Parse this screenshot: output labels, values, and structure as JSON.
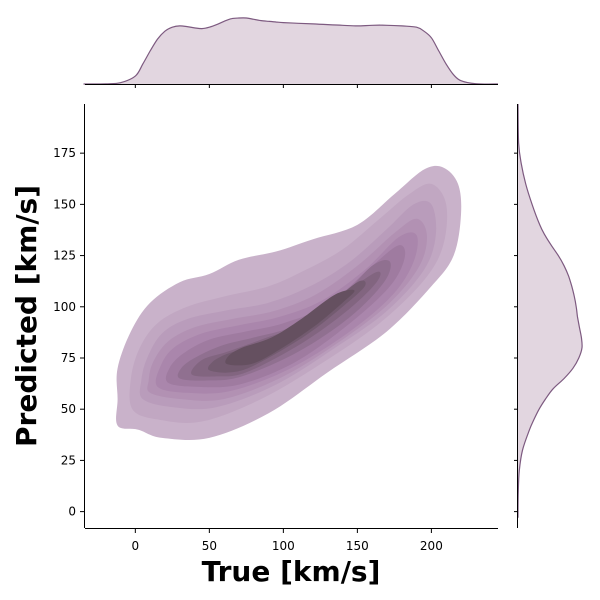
{
  "chart_data": {
    "type": "kde2d-jointplot",
    "xlabel": "True [km/s]",
    "ylabel": "Predicted [km/s]",
    "xlim": [
      -34,
      245
    ],
    "ylim": [
      -8,
      199
    ],
    "xticks": [
      0,
      50,
      100,
      150,
      200
    ],
    "yticks": [
      0,
      25,
      50,
      75,
      100,
      125,
      150,
      175
    ],
    "grid": false,
    "legend": "none",
    "colors": {
      "fill_light": "#c9b2ca",
      "fill_mid": "#a680a8",
      "fill_dark": "#655060",
      "marginal_fill": "#e2d6e0",
      "marginal_line": "#7d5a80",
      "axis": "#000000"
    },
    "joint_density_levels": [
      {
        "level": 1,
        "outline": [
          [
            -12,
            42
          ],
          [
            2,
            40
          ],
          [
            18,
            36
          ],
          [
            50,
            36
          ],
          [
            90,
            48
          ],
          [
            130,
            68
          ],
          [
            170,
            88
          ],
          [
            200,
            110
          ],
          [
            215,
            125
          ],
          [
            220,
            145
          ],
          [
            218,
            160
          ],
          [
            208,
            168
          ],
          [
            195,
            167
          ],
          [
            175,
            155
          ],
          [
            150,
            140
          ],
          [
            120,
            133
          ],
          [
            95,
            127
          ],
          [
            70,
            123
          ],
          [
            50,
            116
          ],
          [
            30,
            112
          ],
          [
            10,
            102
          ],
          [
            -3,
            88
          ],
          [
            -12,
            70
          ],
          [
            -12,
            55
          ]
        ]
      },
      {
        "level": 2,
        "outline": [
          [
            -2,
            50
          ],
          [
            15,
            45
          ],
          [
            45,
            44
          ],
          [
            85,
            55
          ],
          [
            125,
            72
          ],
          [
            165,
            92
          ],
          [
            195,
            113
          ],
          [
            208,
            130
          ],
          [
            210,
            150
          ],
          [
            200,
            160
          ],
          [
            185,
            155
          ],
          [
            165,
            143
          ],
          [
            140,
            128
          ],
          [
            115,
            118
          ],
          [
            90,
            110
          ],
          [
            60,
            105
          ],
          [
            35,
            100
          ],
          [
            15,
            92
          ],
          [
            3,
            80
          ],
          [
            -3,
            65
          ]
        ]
      },
      {
        "level": 3,
        "outline": [
          [
            5,
            55
          ],
          [
            25,
            51
          ],
          [
            55,
            51
          ],
          [
            95,
            62
          ],
          [
            135,
            80
          ],
          [
            170,
            98
          ],
          [
            195,
            118
          ],
          [
            203,
            135
          ],
          [
            200,
            150
          ],
          [
            188,
            150
          ],
          [
            170,
            138
          ],
          [
            145,
            122
          ],
          [
            118,
            110
          ],
          [
            90,
            102
          ],
          [
            60,
            98
          ],
          [
            35,
            94
          ],
          [
            18,
            87
          ],
          [
            8,
            75
          ],
          [
            4,
            64
          ]
        ]
      },
      {
        "level": 4,
        "outline": [
          [
            10,
            58
          ],
          [
            30,
            55
          ],
          [
            60,
            55
          ],
          [
            100,
            66
          ],
          [
            140,
            84
          ],
          [
            172,
            102
          ],
          [
            192,
            120
          ],
          [
            197,
            135
          ],
          [
            190,
            143
          ],
          [
            175,
            136
          ],
          [
            150,
            120
          ],
          [
            122,
            106
          ],
          [
            94,
            98
          ],
          [
            65,
            94
          ],
          [
            40,
            90
          ],
          [
            22,
            83
          ],
          [
            12,
            73
          ],
          [
            9,
            64
          ]
        ]
      },
      {
        "level": 5,
        "outline": [
          [
            15,
            61
          ],
          [
            35,
            58
          ],
          [
            65,
            59
          ],
          [
            105,
            70
          ],
          [
            145,
            88
          ],
          [
            174,
            106
          ],
          [
            188,
            122
          ],
          [
            190,
            135
          ],
          [
            178,
            134
          ],
          [
            155,
            118
          ],
          [
            126,
            103
          ],
          [
            97,
            95
          ],
          [
            70,
            91
          ],
          [
            45,
            87
          ],
          [
            26,
            80
          ],
          [
            17,
            71
          ]
        ]
      },
      {
        "level": 6,
        "outline": [
          [
            22,
            63
          ],
          [
            40,
            61
          ],
          [
            70,
            62
          ],
          [
            108,
            73
          ],
          [
            145,
            92
          ],
          [
            172,
            110
          ],
          [
            182,
            124
          ],
          [
            178,
            130
          ],
          [
            160,
            120
          ],
          [
            130,
            101
          ],
          [
            100,
            92
          ],
          [
            75,
            88
          ],
          [
            50,
            84
          ],
          [
            32,
            77
          ],
          [
            23,
            70
          ]
        ]
      },
      {
        "level": 7,
        "outline": [
          [
            30,
            65
          ],
          [
            48,
            64
          ],
          [
            72,
            66
          ],
          [
            110,
            78
          ],
          [
            145,
            95
          ],
          [
            168,
            112
          ],
          [
            172,
            122
          ],
          [
            160,
            120
          ],
          [
            135,
            102
          ],
          [
            105,
            90
          ],
          [
            80,
            85
          ],
          [
            58,
            81
          ],
          [
            40,
            75
          ],
          [
            31,
            70
          ]
        ]
      },
      {
        "level": 8,
        "outline": [
          [
            38,
            67
          ],
          [
            55,
            66
          ],
          [
            75,
            68
          ],
          [
            112,
            82
          ],
          [
            143,
            98
          ],
          [
            163,
            112
          ],
          [
            163,
            117
          ],
          [
            140,
            106
          ],
          [
            110,
            91
          ],
          [
            85,
            84
          ],
          [
            62,
            78
          ],
          [
            45,
            74
          ]
        ]
      },
      {
        "level": 9,
        "outline": [
          [
            50,
            69
          ],
          [
            65,
            68
          ],
          [
            82,
            72
          ],
          [
            115,
            86
          ],
          [
            140,
            100
          ],
          [
            155,
            110
          ],
          [
            150,
            112
          ],
          [
            125,
            98
          ],
          [
            100,
            87
          ],
          [
            80,
            81
          ],
          [
            62,
            77
          ],
          [
            52,
            73
          ]
        ]
      },
      {
        "level": 10,
        "outline": [
          [
            62,
            72
          ],
          [
            78,
            72
          ],
          [
            95,
            78
          ],
          [
            120,
            90
          ],
          [
            140,
            102
          ],
          [
            148,
            108
          ],
          [
            135,
            106
          ],
          [
            112,
            94
          ],
          [
            92,
            85
          ],
          [
            72,
            80
          ],
          [
            63,
            76
          ]
        ]
      }
    ],
    "marginal_x": {
      "x": [
        -35,
        -20,
        -10,
        0,
        5,
        10,
        15,
        20,
        25,
        30,
        35,
        40,
        45,
        50,
        55,
        60,
        65,
        70,
        75,
        80,
        85,
        90,
        95,
        100,
        110,
        120,
        130,
        140,
        150,
        160,
        170,
        180,
        190,
        195,
        200,
        205,
        210,
        215,
        220,
        230,
        245
      ],
      "density": [
        0,
        0.002,
        0.02,
        0.12,
        0.3,
        0.5,
        0.68,
        0.8,
        0.86,
        0.88,
        0.87,
        0.85,
        0.84,
        0.86,
        0.9,
        0.95,
        0.99,
        1.0,
        1.0,
        0.98,
        0.96,
        0.95,
        0.94,
        0.93,
        0.92,
        0.91,
        0.9,
        0.89,
        0.88,
        0.89,
        0.89,
        0.88,
        0.86,
        0.8,
        0.7,
        0.5,
        0.3,
        0.14,
        0.05,
        0.004,
        0
      ]
    },
    "marginal_y": {
      "y": [
        -3,
        10,
        20,
        30,
        40,
        45,
        50,
        55,
        60,
        65,
        70,
        75,
        80,
        85,
        90,
        95,
        100,
        105,
        110,
        115,
        120,
        125,
        130,
        135,
        140,
        150,
        160,
        170,
        180,
        199
      ],
      "density": [
        0,
        0.004,
        0.02,
        0.07,
        0.18,
        0.25,
        0.33,
        0.43,
        0.55,
        0.72,
        0.86,
        0.95,
        1.0,
        0.99,
        0.96,
        0.93,
        0.91,
        0.88,
        0.84,
        0.79,
        0.72,
        0.63,
        0.52,
        0.42,
        0.34,
        0.22,
        0.12,
        0.05,
        0.01,
        0
      ]
    }
  }
}
